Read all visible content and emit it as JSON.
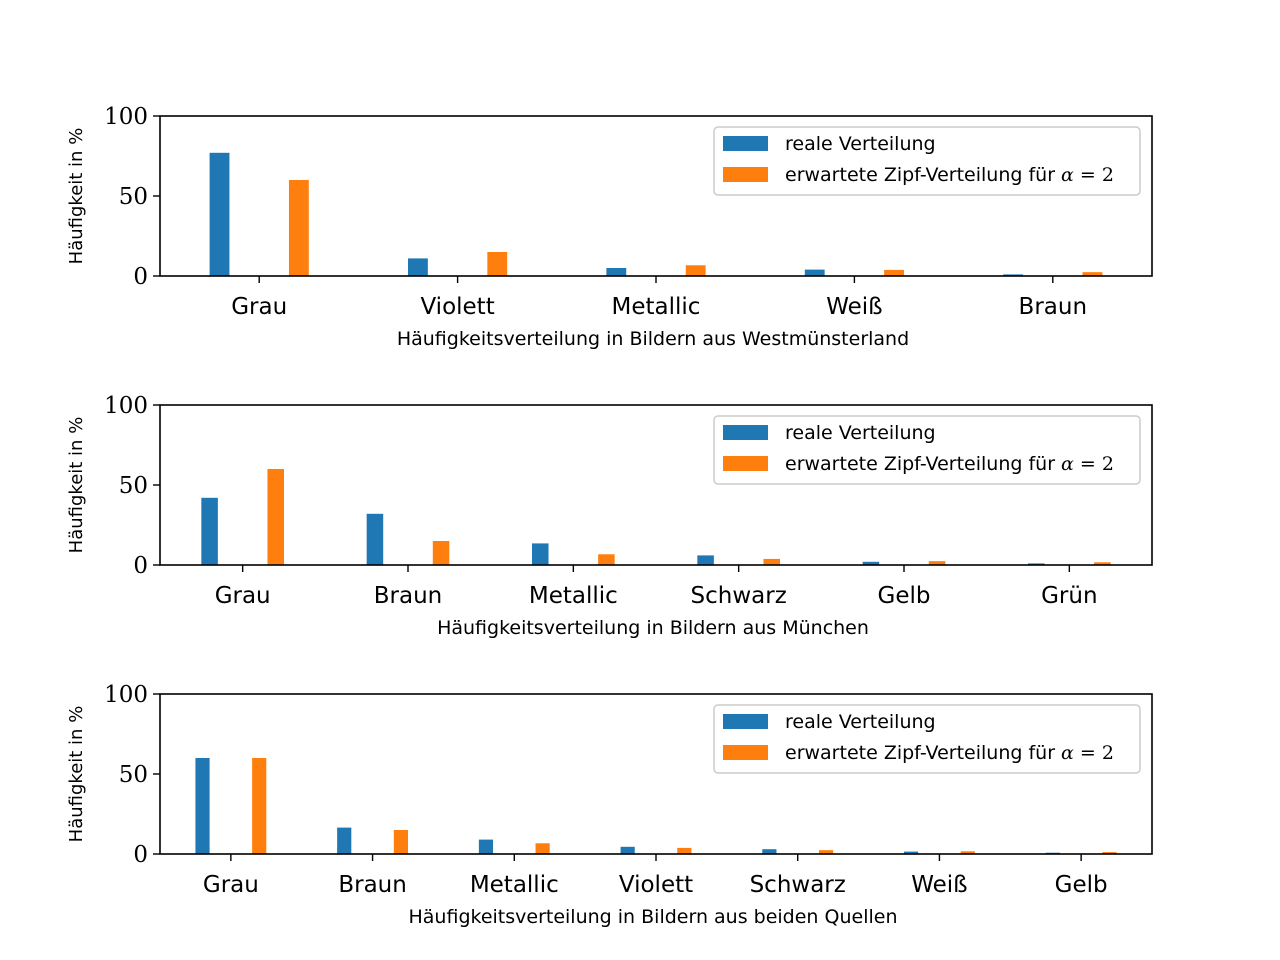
{
  "colors": {
    "real": "#1f77b4",
    "zipf": "#ff7f0e"
  },
  "chart_data": [
    {
      "type": "bar",
      "xlabel": "Häufigkeitsverteilung in Bildern aus Westmünsterland",
      "ylabel": "Häufigkeit in %",
      "ylim": [
        0,
        100
      ],
      "yticks": [
        0,
        50,
        100
      ],
      "categories": [
        "Grau",
        "Violett",
        "Metallic",
        "Weiß",
        "Braun"
      ],
      "series": [
        {
          "name": "reale Verteilung",
          "values": [
            77,
            11,
            5,
            4,
            1
          ]
        },
        {
          "name": "erwartete Zipf-Verteilung für",
          "name_math": [
            "α",
            " = 2"
          ],
          "values": [
            60,
            15,
            6.7,
            3.8,
            2.4
          ]
        }
      ],
      "legend": "upper right"
    },
    {
      "type": "bar",
      "xlabel": "Häufigkeitsverteilung in Bildern aus München",
      "ylabel": "Häufigkeit in %",
      "ylim": [
        0,
        100
      ],
      "yticks": [
        0,
        50,
        100
      ],
      "categories": [
        "Grau",
        "Braun",
        "Metallic",
        "Schwarz",
        "Gelb",
        "Grün"
      ],
      "series": [
        {
          "name": "reale Verteilung",
          "values": [
            42,
            32,
            13.5,
            6,
            2,
            1
          ]
        },
        {
          "name": "erwartete Zipf-Verteilung für",
          "name_math": [
            "α",
            " = 2"
          ],
          "values": [
            60,
            15,
            6.7,
            3.8,
            2.4,
            1.7
          ]
        }
      ],
      "legend": "upper right"
    },
    {
      "type": "bar",
      "xlabel": "Häufigkeitsverteilung in Bildern aus beiden Quellen",
      "ylabel": "Häufigkeit in %",
      "ylim": [
        0,
        100
      ],
      "yticks": [
        0,
        50,
        100
      ],
      "categories": [
        "Grau",
        "Braun",
        "Metallic",
        "Violett",
        "Schwarz",
        "Weiß",
        "Gelb"
      ],
      "series": [
        {
          "name": "reale Verteilung",
          "values": [
            60,
            16.5,
            9,
            4.5,
            3,
            1.5,
            0.8
          ]
        },
        {
          "name": "erwartete Zipf-Verteilung für",
          "name_math": [
            "α",
            " = 2"
          ],
          "values": [
            60,
            15,
            6.7,
            3.8,
            2.4,
            1.7,
            1.2
          ]
        }
      ],
      "legend": "upper right"
    }
  ]
}
